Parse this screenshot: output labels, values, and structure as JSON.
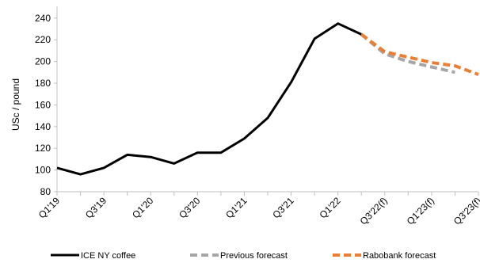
{
  "chart_data": {
    "type": "line",
    "title": "",
    "xlabel": "",
    "ylabel": "USc / pound",
    "ylim": [
      80,
      245
    ],
    "yticks": [
      80,
      100,
      120,
      140,
      160,
      180,
      200,
      220,
      240
    ],
    "grid": false,
    "legend_position": "bottom",
    "categories": [
      "Q1'19",
      "Q2'19",
      "Q3'19",
      "Q4'19",
      "Q1'20",
      "Q2'20",
      "Q3'20",
      "Q4'20",
      "Q1'21",
      "Q2'21",
      "Q3'21",
      "Q4'21",
      "Q1'22",
      "Q2'22",
      "Q3'22(f)",
      "Q4'22(f)",
      "Q1'23(f)",
      "Q2'23(f)",
      "Q3'23(f)"
    ],
    "tick_labels": [
      "Q1'19",
      "Q3'19",
      "Q1'20",
      "Q3'20",
      "Q1'21",
      "Q3'21",
      "Q1'22",
      "Q3'22(f)",
      "Q1'23(f)",
      "Q3'23(f)"
    ],
    "series": [
      {
        "name": "ICE NY coffee",
        "color": "#000000",
        "style": "solid",
        "values": [
          102,
          96,
          102,
          114,
          112,
          106,
          116,
          116,
          129,
          148,
          181,
          221,
          235,
          225,
          null,
          null,
          null,
          null,
          null
        ]
      },
      {
        "name": "Previous forecast",
        "color": "#a6a6a6",
        "style": "dashed",
        "values": [
          null,
          null,
          null,
          null,
          null,
          null,
          null,
          null,
          null,
          null,
          null,
          null,
          null,
          225,
          207,
          200,
          195,
          190,
          null
        ]
      },
      {
        "name": "Rabobank forecast",
        "color": "#ed7d31",
        "style": "dashed",
        "values": [
          null,
          null,
          null,
          null,
          null,
          null,
          null,
          null,
          null,
          null,
          null,
          null,
          null,
          225,
          209,
          204,
          199,
          196,
          188
        ]
      }
    ]
  }
}
